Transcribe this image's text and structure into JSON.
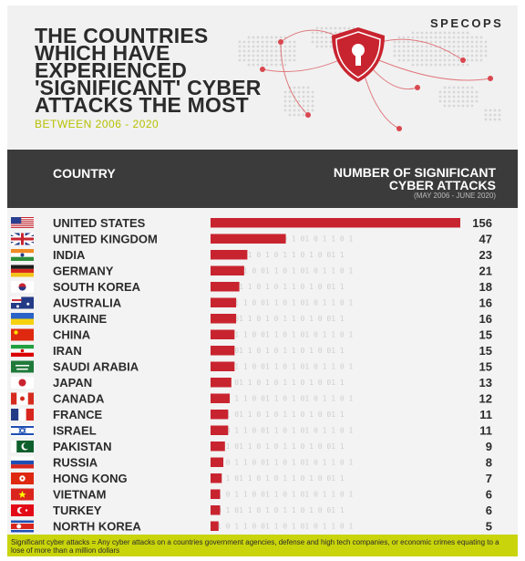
{
  "brand": "SPECOPS",
  "title": "THE COUNTRIES\nWHICH HAVE\nEXPERIENCED\n'SIGNIFICANT' CYBER\nATTACKS THE MOST",
  "subtitle": "BETWEEN 2006 - 2020",
  "columns": {
    "country": "COUNTRY",
    "attacks": "NUMBER OF SIGNIFICANT\nCYBER ATTACKS",
    "period": "(MAY 2006 - JUNE 2020)"
  },
  "footnote": "Significant cyber attacks = Any cyber attacks on a countries government agencies, defense and high tech companies, or economic crimes equating to a lose of more than a million dollars",
  "colors": {
    "bar": "#c8242f",
    "accent": "#c9d40a",
    "header_band": "#3b3b3b"
  },
  "icons": {
    "header": "shield-lock-icon",
    "flags": "country-flag-icon"
  },
  "chart_data": {
    "type": "bar",
    "orientation": "horizontal",
    "categories": [
      "UNITED STATES",
      "UNITED KINGDOM",
      "INDIA",
      "GERMANY",
      "SOUTH KOREA",
      "AUSTRALIA",
      "UKRAINE",
      "CHINA",
      "IRAN",
      "SAUDI ARABIA",
      "JAPAN",
      "CANADA",
      "FRANCE",
      "ISRAEL",
      "PAKISTAN",
      "RUSSIA",
      "HONG KONG",
      "VIETNAM",
      "TURKEY",
      "NORTH KOREA"
    ],
    "values": [
      156,
      47,
      23,
      21,
      18,
      16,
      16,
      15,
      15,
      15,
      13,
      12,
      11,
      11,
      9,
      8,
      7,
      6,
      6,
      5
    ],
    "xlim": [
      0,
      156
    ],
    "grid": false,
    "legend": "none"
  }
}
